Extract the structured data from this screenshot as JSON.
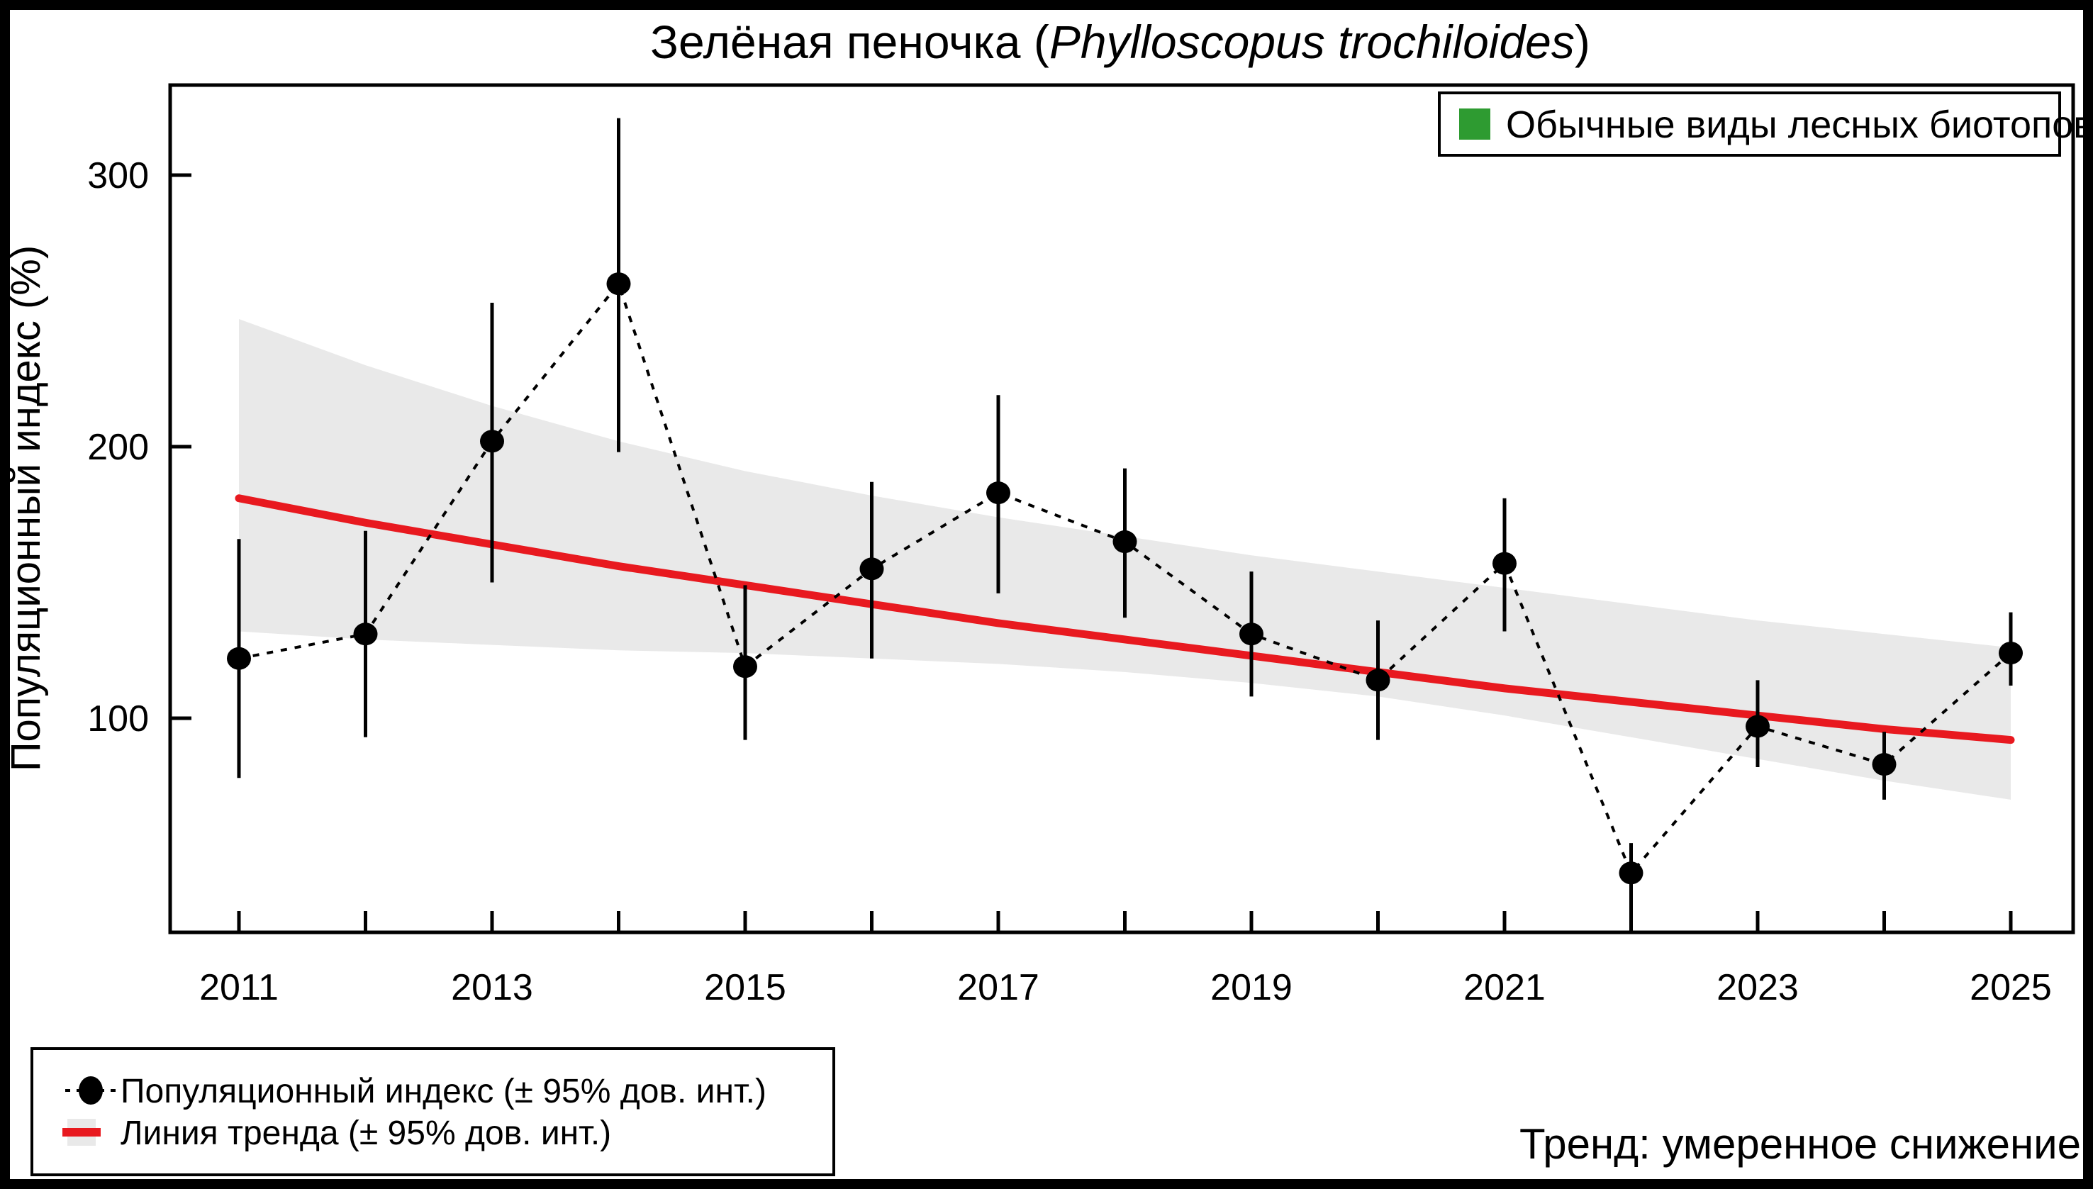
{
  "title": {
    "prefix": "Зелёная пеночка (",
    "italic": "Phylloscopus trochiloides",
    "suffix": ")"
  },
  "y_axis": {
    "label": "Популяционный индекс (%)",
    "ticks": [
      100,
      200,
      300
    ]
  },
  "x_axis": {
    "label_years": [
      2011,
      2013,
      2015,
      2017,
      2019,
      2021,
      2023,
      2025
    ]
  },
  "legend_top": {
    "label": "Обычные виды лесных биотопов",
    "swatch_color": "#2e9b31"
  },
  "legend_bottom": {
    "item_index": "Популяционный индекс (± 95% дов. инт.)",
    "item_trend": "Линия тренда (± 95% дов. инт.)"
  },
  "trend_note": {
    "text": "Тренд: умеренное снижение",
    "color": "#e8191f"
  },
  "colors": {
    "red": "#e8191f",
    "green": "#2e9b31",
    "band": "#e9e9e9",
    "black": "#000000"
  },
  "chart_data": {
    "type": "line",
    "title": "Зелёная пеночка (Phylloscopus trochiloides)",
    "ylabel": "Популяционный индекс (%)",
    "xlim": [
      2010.45,
      2025.4
    ],
    "ylim": [
      20,
      335
    ],
    "grid": false,
    "x": [
      2011,
      2012,
      2013,
      2014,
      2015,
      2016,
      2017,
      2018,
      2019,
      2020,
      2021,
      2022,
      2023,
      2024,
      2025
    ],
    "series": [
      {
        "name": "Популяционный индекс (± 95% дов. инт.)",
        "values": [
          122,
          131,
          202,
          260,
          119,
          155,
          183,
          165,
          131,
          114,
          157,
          43,
          97,
          83,
          124
        ],
        "ci_low": [
          78,
          93,
          150,
          198,
          92,
          122,
          146,
          137,
          108,
          92,
          132,
          24,
          82,
          70,
          112
        ],
        "ci_high": [
          166,
          169,
          253,
          321,
          149,
          187,
          219,
          192,
          154,
          136,
          181,
          54,
          114,
          95,
          139
        ]
      },
      {
        "name": "Линия тренда (± 95% дов. инт.)",
        "values": [
          181,
          172,
          164,
          156,
          149,
          142,
          135,
          129,
          123,
          117,
          111,
          106,
          101,
          96,
          92
        ],
        "band_low": [
          132,
          129,
          127,
          125,
          124,
          122,
          120,
          117,
          113,
          108,
          101,
          93,
          85,
          77,
          70
        ],
        "band_high": [
          247,
          230,
          215,
          202,
          191,
          182,
          174,
          167,
          160,
          154,
          148,
          142,
          136,
          131,
          126
        ]
      }
    ]
  }
}
